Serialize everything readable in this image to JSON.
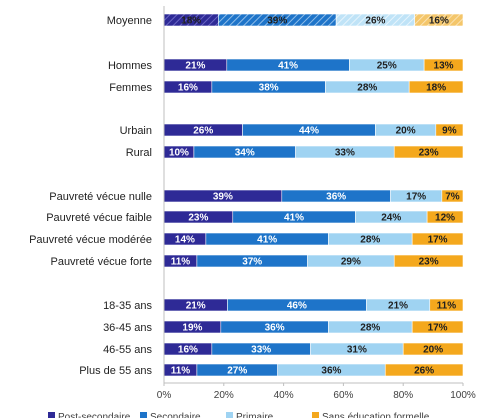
{
  "chart_data": {
    "type": "bar",
    "orientation": "horizontal",
    "stacked": true,
    "percent_scale": true,
    "xlim": [
      0,
      100
    ],
    "x_ticks": [
      "0%",
      "20%",
      "40%",
      "60%",
      "80%",
      "100%"
    ],
    "grid": false,
    "legend_position": "bottom",
    "series": [
      {
        "name": "Post-secondaire",
        "color": "#2e2a96"
      },
      {
        "name": "Secondaire",
        "color": "#1e74c9"
      },
      {
        "name": "Primaire",
        "color": "#9fd3f2"
      },
      {
        "name": "Sans éducation formelle",
        "color": "#f4a81d"
      }
    ],
    "rows": [
      {
        "label": "Moyenne",
        "values": [
          18,
          39,
          26,
          16
        ],
        "hatched": true
      },
      {
        "label": "Hommes",
        "values": [
          21,
          41,
          25,
          13
        ]
      },
      {
        "label": "Femmes",
        "values": [
          16,
          38,
          28,
          18
        ]
      },
      {
        "label": "Urbain",
        "values": [
          26,
          44,
          20,
          9
        ]
      },
      {
        "label": "Rural",
        "values": [
          10,
          34,
          33,
          23
        ]
      },
      {
        "label": "Pauvreté vécue nulle",
        "values": [
          39,
          36,
          17,
          7
        ]
      },
      {
        "label": "Pauvreté vécue faible",
        "values": [
          23,
          41,
          24,
          12
        ]
      },
      {
        "label": "Pauvreté vécue modérée",
        "values": [
          14,
          41,
          28,
          17
        ]
      },
      {
        "label": "Pauvreté vécue forte",
        "values": [
          11,
          37,
          29,
          23
        ]
      },
      {
        "label": "18-35 ans",
        "values": [
          21,
          46,
          21,
          11
        ]
      },
      {
        "label": "36-45 ans",
        "values": [
          19,
          36,
          28,
          17
        ]
      },
      {
        "label": "46-55 ans",
        "values": [
          16,
          33,
          31,
          20
        ]
      },
      {
        "label": "Plus de 55 ans",
        "values": [
          11,
          27,
          36,
          26
        ]
      }
    ]
  }
}
